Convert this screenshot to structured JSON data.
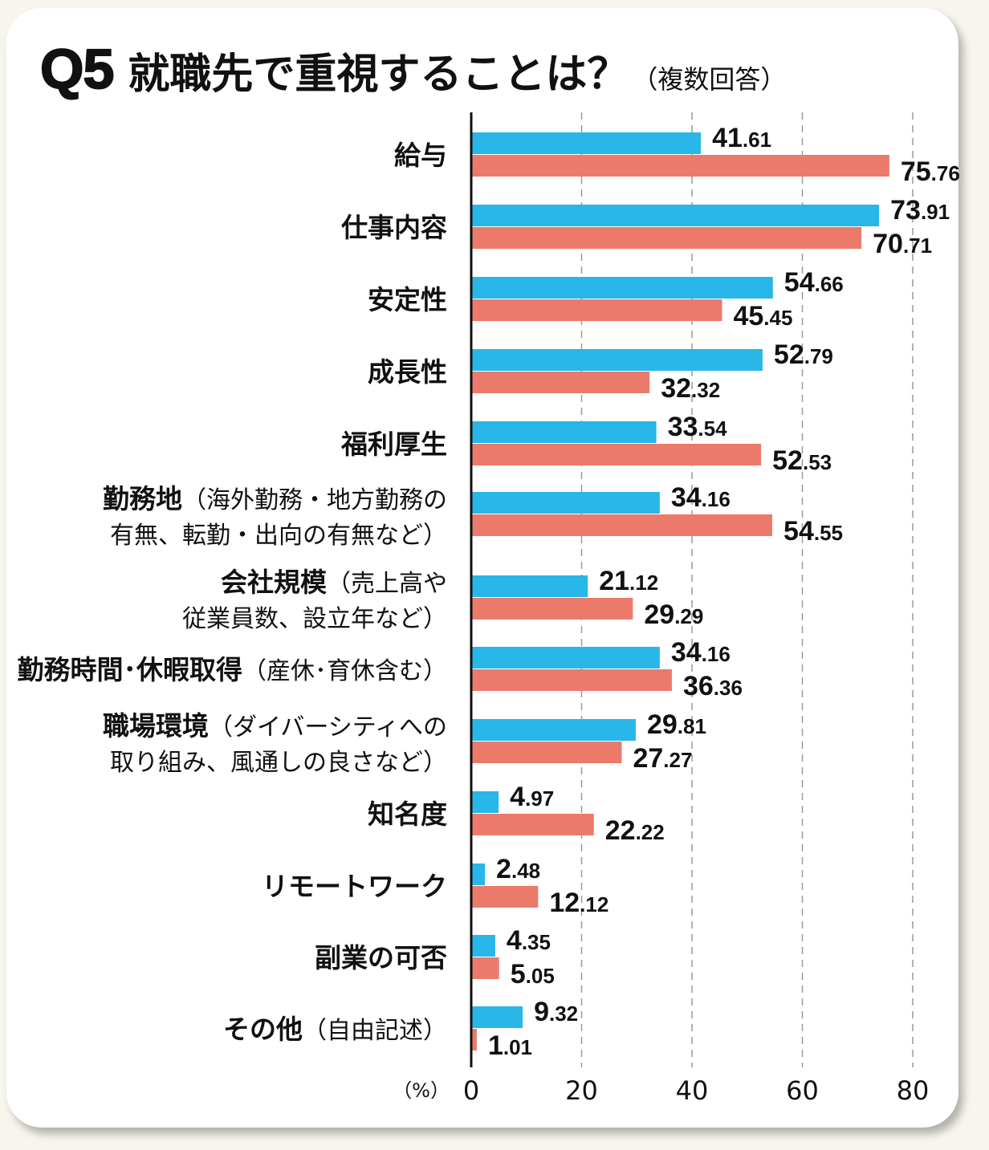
{
  "title": {
    "prefix": "Q5",
    "main": "就職先で重視することは？",
    "note": "（複数回答）"
  },
  "colors": {
    "series_a": "#29b6e8",
    "series_b": "#ec7a6b",
    "axis": "#111111",
    "grid": "#9a9a9a"
  },
  "chart_data": {
    "type": "bar",
    "orientation": "horizontal",
    "title": "Q5 就職先で重視することは？（複数回答）",
    "xlabel": "（%）",
    "ylabel": "",
    "xlim": [
      0,
      80
    ],
    "x_ticks": [
      "0",
      "20",
      "40",
      "60",
      "80"
    ],
    "grid": true,
    "legend": "none",
    "categories": [
      {
        "bold": "給与",
        "normal": "",
        "line2": ""
      },
      {
        "bold": "仕事内容",
        "normal": "",
        "line2": ""
      },
      {
        "bold": "安定性",
        "normal": "",
        "line2": ""
      },
      {
        "bold": "成長性",
        "normal": "",
        "line2": ""
      },
      {
        "bold": "福利厚生",
        "normal": "",
        "line2": ""
      },
      {
        "bold": "勤務地",
        "normal": "（海外勤務・地方勤務の",
        "line2": "有無、転勤・出向の有無など）"
      },
      {
        "bold": "会社規模",
        "normal": "（売上高や",
        "line2": "従業員数、設立年など）"
      },
      {
        "bold": "勤務時間･休暇取得",
        "normal": "（産休･育休含む）",
        "line2": ""
      },
      {
        "bold": "職場環境",
        "normal": "（ダイバーシティへの",
        "line2": "取り組み、風通しの良さなど）"
      },
      {
        "bold": "知名度",
        "normal": "",
        "line2": ""
      },
      {
        "bold": "リモートワーク",
        "normal": "",
        "line2": ""
      },
      {
        "bold": "副業の可否",
        "normal": "",
        "line2": ""
      },
      {
        "bold": "その他",
        "normal": "（自由記述）",
        "line2": ""
      }
    ],
    "series": [
      {
        "name": "series_a",
        "values": [
          41.61,
          73.91,
          54.66,
          52.79,
          33.54,
          34.16,
          21.12,
          34.16,
          29.81,
          4.97,
          2.48,
          4.35,
          9.32
        ]
      },
      {
        "name": "series_b",
        "values": [
          75.76,
          70.71,
          45.45,
          32.32,
          52.53,
          54.55,
          29.29,
          36.36,
          27.27,
          22.22,
          12.12,
          5.05,
          1.01
        ]
      }
    ]
  }
}
